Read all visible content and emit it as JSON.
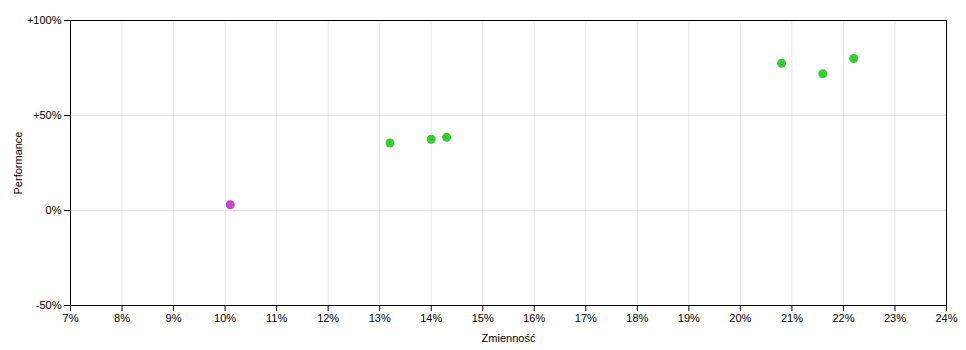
{
  "chart_data": {
    "type": "scatter",
    "xlabel": "Zmienność",
    "ylabel": "Performance",
    "x": [
      0.101,
      0.132,
      0.14,
      0.143,
      0.208,
      0.216,
      0.222
    ],
    "values": [
      0.03,
      0.355,
      0.375,
      0.385,
      0.775,
      0.72,
      0.8
    ],
    "colors": [
      "#cc44cc",
      "#33cc33",
      "#33cc33",
      "#33cc33",
      "#33cc33",
      "#33cc33",
      "#33cc33"
    ],
    "xlim": [
      0.07,
      0.24
    ],
    "ylim": [
      -0.5,
      1.0
    ],
    "xticks": [
      {
        "value": 0.07,
        "label": "7%"
      },
      {
        "value": 0.08,
        "label": "8%"
      },
      {
        "value": 0.09,
        "label": "9%"
      },
      {
        "value": 0.1,
        "label": "10%"
      },
      {
        "value": 0.11,
        "label": "11%"
      },
      {
        "value": 0.12,
        "label": "12%"
      },
      {
        "value": 0.13,
        "label": "13%"
      },
      {
        "value": 0.14,
        "label": "14%"
      },
      {
        "value": 0.15,
        "label": "15%"
      },
      {
        "value": 0.16,
        "label": "16%"
      },
      {
        "value": 0.17,
        "label": "17%"
      },
      {
        "value": 0.18,
        "label": "18%"
      },
      {
        "value": 0.19,
        "label": "19%"
      },
      {
        "value": 0.2,
        "label": "20%"
      },
      {
        "value": 0.21,
        "label": "21%"
      },
      {
        "value": 0.22,
        "label": "22%"
      },
      {
        "value": 0.23,
        "label": "23%"
      },
      {
        "value": 0.24,
        "label": "24%"
      }
    ],
    "yticks": [
      {
        "value": -0.5,
        "label": "-50%"
      },
      {
        "value": 0.0,
        "label": "0%"
      },
      {
        "value": 0.5,
        "label": "+50%"
      },
      {
        "value": 1.0,
        "label": "+100%"
      }
    ],
    "grid": true
  }
}
